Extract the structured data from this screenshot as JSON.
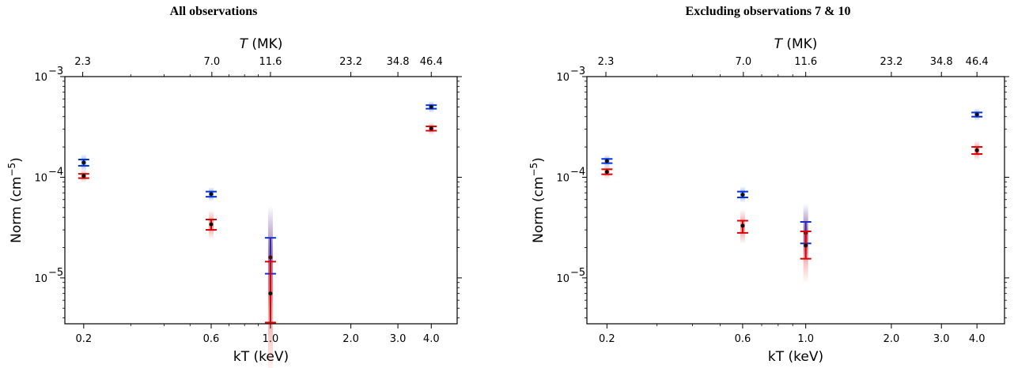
{
  "chart_data": [
    {
      "type": "scatter",
      "title": "All observations",
      "xlabel": "kT (keV)",
      "ylabel": "Norm (cm",
      "ylabel_exp": "−5",
      "ylabel_close": ")",
      "top_xlabel_var": "T",
      "top_xlabel_unit": " (MK)",
      "x_scale": "log",
      "y_scale": "log",
      "xlim": [
        0.17,
        5.0
      ],
      "ylim": [
        3.5e-06,
        0.001
      ],
      "xticks": [
        0.2,
        0.6,
        1.0,
        2.0,
        3.0,
        4.0
      ],
      "xtick_labels": [
        "0.2",
        "0.6",
        "1.0",
        "2.0",
        "3.0",
        "4.0"
      ],
      "top_ticks": [
        2.3,
        7.0,
        11.6,
        23.2,
        34.8,
        46.4
      ],
      "top_tick_labels": [
        "2.3",
        "7.0",
        "11.6",
        "23.2",
        "34.8",
        "46.4"
      ],
      "yticks_exp": [
        -3,
        -4,
        -5
      ],
      "ytick_base": "10",
      "series": [
        {
          "color": "#0033dd",
          "points": [
            {
              "x": 0.2,
              "y": 0.00014,
              "lo": 0.00013,
              "hi": 0.00015
            },
            {
              "x": 0.6,
              "y": 6.8e-05,
              "lo": 6.4e-05,
              "hi": 7.2e-05
            },
            {
              "x": 1.0,
              "y": 1.6e-05,
              "lo": 1.1e-05,
              "hi": 2.5e-05
            },
            {
              "x": 4.0,
              "y": 0.0005,
              "lo": 0.00048,
              "hi": 0.00052
            }
          ]
        },
        {
          "color": "#dd0000",
          "points": [
            {
              "x": 0.2,
              "y": 0.000103,
              "lo": 9.8e-05,
              "hi": 0.000108
            },
            {
              "x": 0.6,
              "y": 3.4e-05,
              "lo": 3e-05,
              "hi": 3.8e-05
            },
            {
              "x": 1.0,
              "y": 7e-06,
              "lo": 3.6e-06,
              "hi": 1.45e-05
            },
            {
              "x": 4.0,
              "y": 0.000305,
              "lo": 0.00029,
              "hi": 0.00032
            }
          ]
        }
      ]
    },
    {
      "type": "scatter",
      "title": "Excluding observations 7 & 10",
      "xlabel": "kT (keV)",
      "ylabel": "Norm (cm",
      "ylabel_exp": "−5",
      "ylabel_close": ")",
      "top_xlabel_var": "T",
      "top_xlabel_unit": " (MK)",
      "x_scale": "log",
      "y_scale": "log",
      "xlim": [
        0.17,
        5.0
      ],
      "ylim": [
        3.5e-06,
        0.001
      ],
      "xticks": [
        0.2,
        0.6,
        1.0,
        2.0,
        3.0,
        4.0
      ],
      "xtick_labels": [
        "0.2",
        "0.6",
        "1.0",
        "2.0",
        "3.0",
        "4.0"
      ],
      "top_ticks": [
        2.3,
        7.0,
        11.6,
        23.2,
        34.8,
        46.4
      ],
      "top_tick_labels": [
        "2.3",
        "7.0",
        "11.6",
        "23.2",
        "34.8",
        "46.4"
      ],
      "yticks_exp": [
        -3,
        -4,
        -5
      ],
      "ytick_base": "10",
      "series": [
        {
          "color": "#0033dd",
          "points": [
            {
              "x": 0.2,
              "y": 0.000145,
              "lo": 0.000138,
              "hi": 0.000152
            },
            {
              "x": 0.6,
              "y": 6.7e-05,
              "lo": 6.3e-05,
              "hi": 7.2e-05
            },
            {
              "x": 1.0,
              "y": 2.8e-05,
              "lo": 2.2e-05,
              "hi": 3.6e-05
            },
            {
              "x": 4.0,
              "y": 0.00042,
              "lo": 0.0004,
              "hi": 0.00044
            }
          ]
        },
        {
          "color": "#dd0000",
          "points": [
            {
              "x": 0.2,
              "y": 0.000113,
              "lo": 0.000107,
              "hi": 0.00012
            },
            {
              "x": 0.6,
              "y": 3.3e-05,
              "lo": 2.8e-05,
              "hi": 3.7e-05
            },
            {
              "x": 1.0,
              "y": 2.1e-05,
              "lo": 1.55e-05,
              "hi": 2.9e-05
            },
            {
              "x": 4.0,
              "y": 0.000185,
              "lo": 0.00017,
              "hi": 0.0002
            }
          ]
        }
      ]
    }
  ]
}
